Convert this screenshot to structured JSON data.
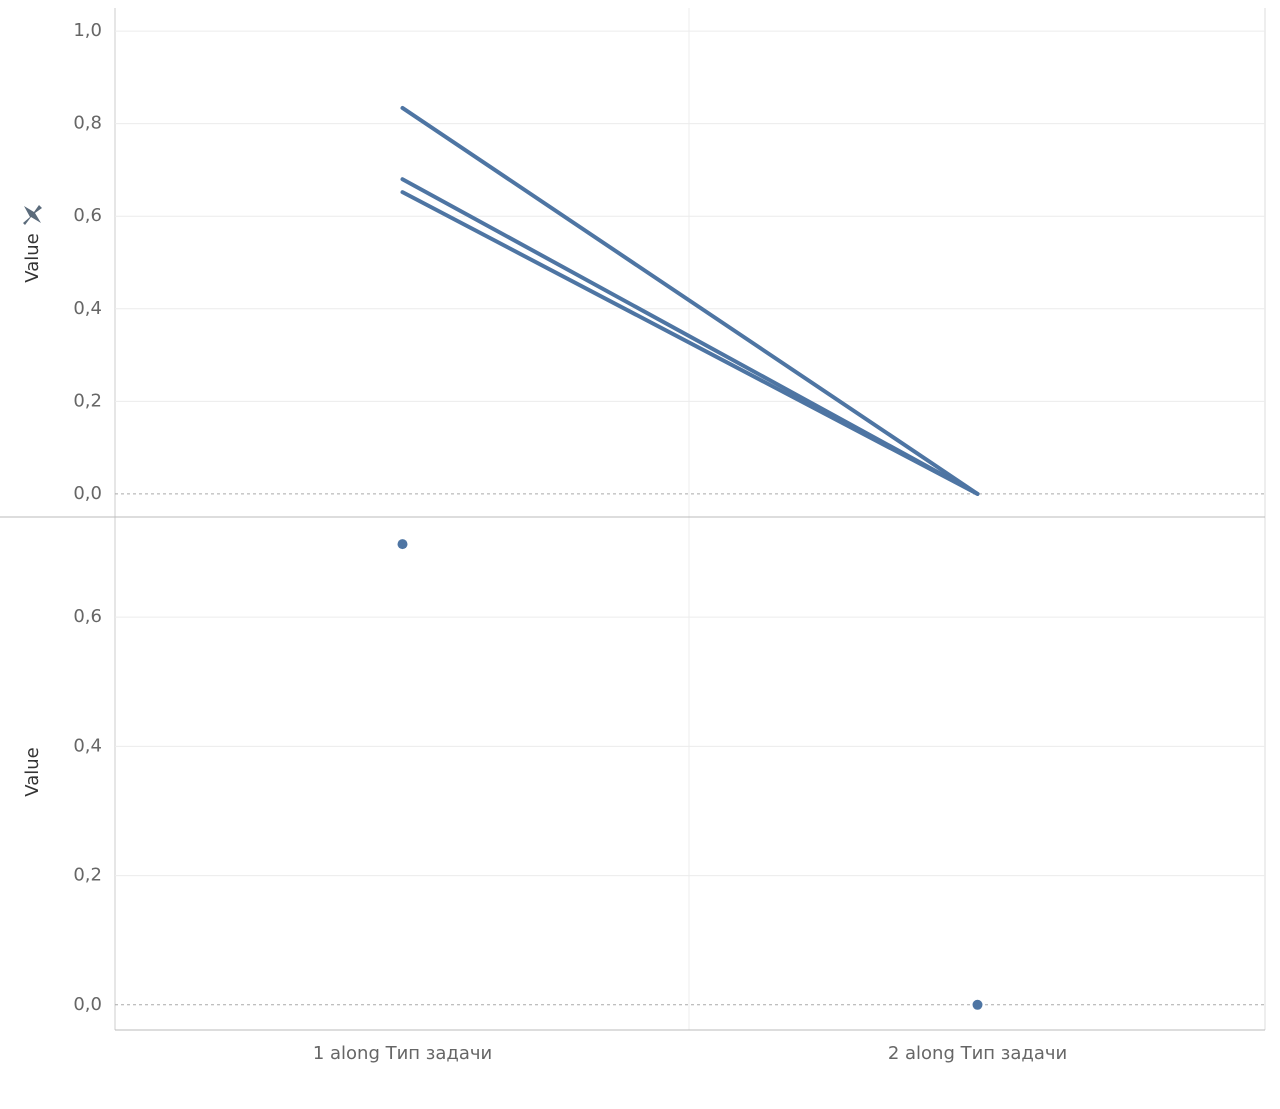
{
  "chart_data": [
    {
      "type": "line",
      "y_label": "Value",
      "series": [
        {
          "color": "#4e75a3",
          "values": [
            0.834,
            0
          ]
        },
        {
          "color": "#4e75a3",
          "values": [
            0.68,
            0
          ]
        },
        {
          "color": "#4e75a3",
          "values": [
            0.652,
            0
          ]
        }
      ],
      "ylim": [
        -0.05,
        1.05
      ],
      "yticks": [
        {
          "value": 0,
          "label": "0,0"
        },
        {
          "value": 0.2,
          "label": "0,2"
        },
        {
          "value": 0.4,
          "label": "0,4"
        },
        {
          "value": 0.6,
          "label": "0,6"
        },
        {
          "value": 0.8,
          "label": "0,8"
        },
        {
          "value": 1,
          "label": "1,0"
        }
      ],
      "grid": true
    },
    {
      "type": "dot",
      "y_label": "Value",
      "categories": [
        "1 along Тип задачи",
        "2 along Тип задачи"
      ],
      "values": [
        0.713,
        0
      ],
      "color": "#4e75a3",
      "ylim": [
        -0.039,
        0.755
      ],
      "yticks": [
        {
          "value": 0,
          "label": "0,0"
        },
        {
          "value": 0.2,
          "label": "0,2"
        },
        {
          "value": 0.4,
          "label": "0,4"
        },
        {
          "value": 0.6,
          "label": "0,6"
        }
      ],
      "grid": true
    }
  ]
}
